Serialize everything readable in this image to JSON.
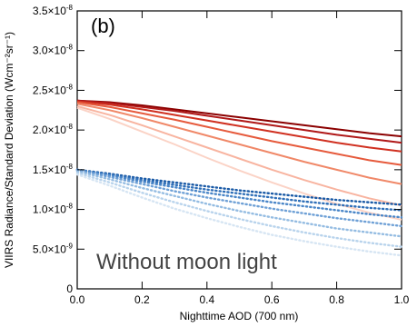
{
  "chart_data": {
    "type": "line",
    "panel_label": "(b)",
    "annotation": "Without moon light",
    "xlabel": "Nighttime AOD (700 nm)",
    "ylabel": "VIIRS Radiance/Standard Deviation (Wcm⁻²sr⁻¹)",
    "xlim": [
      0.0,
      1.0
    ],
    "ylim": [
      0,
      3.5e-08
    ],
    "x_ticks": [
      {
        "value": 0.0,
        "label": "0.0"
      },
      {
        "value": 0.2,
        "label": "0.2"
      },
      {
        "value": 0.4,
        "label": "0.4"
      },
      {
        "value": 0.6,
        "label": "0.6"
      },
      {
        "value": 0.8,
        "label": "0.8"
      },
      {
        "value": 1.0,
        "label": "1.0"
      }
    ],
    "y_ticks": [
      {
        "value": 0,
        "mantissa": "0",
        "exp": ""
      },
      {
        "value": 5e-09,
        "mantissa": "5.0×10",
        "exp": "-9"
      },
      {
        "value": 1e-08,
        "mantissa": "1.0×10",
        "exp": "-8"
      },
      {
        "value": 1.5e-08,
        "mantissa": "1.5×10",
        "exp": "-8"
      },
      {
        "value": 2e-08,
        "mantissa": "2.0×10",
        "exp": "-8"
      },
      {
        "value": 2.5e-08,
        "mantissa": "2.5×10",
        "exp": "-8"
      },
      {
        "value": 3e-08,
        "mantissa": "3.0×10",
        "exp": "-8"
      },
      {
        "value": 3.5e-08,
        "mantissa": "3.5×10",
        "exp": "-8"
      }
    ],
    "x": [
      0.0,
      0.1,
      0.2,
      0.3,
      0.4,
      0.5,
      0.6,
      0.7,
      0.8,
      0.9,
      1.0
    ],
    "series": [
      {
        "style": "solid",
        "color": "#8b0000",
        "values": [
          2.37e-08,
          2.35e-08,
          2.31e-08,
          2.26e-08,
          2.21e-08,
          2.16e-08,
          2.11e-08,
          2.06e-08,
          2.01e-08,
          1.96e-08,
          1.92e-08
        ]
      },
      {
        "style": "solid",
        "color": "#b01818",
        "values": [
          2.37e-08,
          2.34e-08,
          2.29e-08,
          2.24e-08,
          2.18e-08,
          2.12e-08,
          2.06e-08,
          2e-08,
          1.94e-08,
          1.89e-08,
          1.84e-08
        ]
      },
      {
        "style": "solid",
        "color": "#d03020",
        "values": [
          2.36e-08,
          2.32e-08,
          2.26e-08,
          2.19e-08,
          2.12e-08,
          2.05e-08,
          1.98e-08,
          1.91e-08,
          1.84e-08,
          1.78e-08,
          1.73e-08
        ]
      },
      {
        "style": "solid",
        "color": "#e65a3c",
        "values": [
          2.35e-08,
          2.29e-08,
          2.21e-08,
          2.13e-08,
          2.04e-08,
          1.95e-08,
          1.86e-08,
          1.78e-08,
          1.7e-08,
          1.62e-08,
          1.56e-08
        ]
      },
      {
        "style": "solid",
        "color": "#f08868",
        "values": [
          2.33e-08,
          2.25e-08,
          2.15e-08,
          2.04e-08,
          1.93e-08,
          1.82e-08,
          1.71e-08,
          1.6e-08,
          1.5e-08,
          1.4e-08,
          1.32e-08
        ]
      },
      {
        "style": "solid",
        "color": "#f8b4a0",
        "values": [
          2.3e-08,
          2.19e-08,
          2.06e-08,
          1.92e-08,
          1.78e-08,
          1.64e-08,
          1.5e-08,
          1.37e-08,
          1.25e-08,
          1.14e-08,
          1.05e-08
        ]
      },
      {
        "style": "solid",
        "color": "#fbd3c6",
        "values": [
          2.28e-08,
          2.14e-08,
          1.98e-08,
          1.82e-08,
          1.65e-08,
          1.49e-08,
          1.34e-08,
          1.2e-08,
          1.07e-08,
          9.6e-09,
          8.7e-09
        ]
      },
      {
        "style": "dotted",
        "color": "#1a5aa6",
        "values": [
          1.5e-08,
          1.45e-08,
          1.39e-08,
          1.34e-08,
          1.29e-08,
          1.24e-08,
          1.2e-08,
          1.16e-08,
          1.12e-08,
          1.09e-08,
          1.06e-08
        ]
      },
      {
        "style": "dotted",
        "color": "#2f6fb8",
        "values": [
          1.5e-08,
          1.44e-08,
          1.37e-08,
          1.31e-08,
          1.25e-08,
          1.2e-08,
          1.15e-08,
          1.1e-08,
          1.06e-08,
          1.02e-08,
          9.9e-09
        ]
      },
      {
        "style": "dotted",
        "color": "#4a86c8",
        "values": [
          1.5e-08,
          1.43e-08,
          1.35e-08,
          1.28e-08,
          1.21e-08,
          1.15e-08,
          1.09e-08,
          1.04e-08,
          9.9e-09,
          9.4e-09,
          9e-09
        ]
      },
      {
        "style": "dotted",
        "color": "#6ea0d6",
        "values": [
          1.49e-08,
          1.41e-08,
          1.32e-08,
          1.23e-08,
          1.15e-08,
          1.08e-08,
          1.01e-08,
          9.5e-09,
          8.9e-09,
          8.4e-09,
          7.9e-09
        ]
      },
      {
        "style": "dotted",
        "color": "#94bce2",
        "values": [
          1.48e-08,
          1.38e-08,
          1.27e-08,
          1.17e-08,
          1.07e-08,
          9.8e-09,
          9e-09,
          8.3e-09,
          7.6e-09,
          7.1e-09,
          6.6e-09
        ]
      },
      {
        "style": "dotted",
        "color": "#b8d3ec",
        "values": [
          1.46e-08,
          1.34e-08,
          1.21e-08,
          1.09e-08,
          9.8e-09,
          8.8e-09,
          7.9e-09,
          7.1e-09,
          6.4e-09,
          5.8e-09,
          5.3e-09
        ]
      },
      {
        "style": "dotted",
        "color": "#d6e5f3",
        "values": [
          1.44e-08,
          1.3e-08,
          1.15e-08,
          1.01e-08,
          8.9e-09,
          7.8e-09,
          6.8e-09,
          6e-09,
          5.3e-09,
          4.7e-09,
          4.2e-09
        ]
      }
    ]
  }
}
